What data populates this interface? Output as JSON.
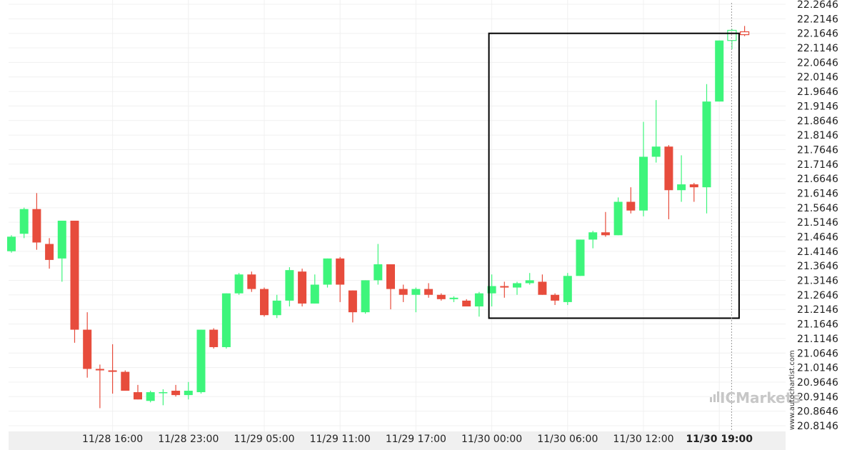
{
  "chart_data": {
    "type": "candlestick",
    "y_ticks": [
      "22.2646",
      "22.2146",
      "22.1646",
      "22.1146",
      "22.0646",
      "22.0146",
      "21.9646",
      "21.9146",
      "21.8646",
      "21.8146",
      "21.7646",
      "21.7146",
      "21.6646",
      "21.6146",
      "21.5646",
      "21.5146",
      "21.4646",
      "21.4146",
      "21.3646",
      "21.3146",
      "21.2646",
      "21.2146",
      "21.1646",
      "21.1146",
      "21.0646",
      "21.0146",
      "20.9646",
      "20.9146",
      "20.8646",
      "20.8146"
    ],
    "ylim": [
      20.8146,
      22.2646
    ],
    "x_ticks": [
      {
        "label": "11/28 16:00",
        "index": 8,
        "bold": false
      },
      {
        "label": "11/28 23:00",
        "index": 14,
        "bold": false
      },
      {
        "label": "11/29 05:00",
        "index": 20,
        "bold": false
      },
      {
        "label": "11/29 11:00",
        "index": 26,
        "bold": false
      },
      {
        "label": "11/29 17:00",
        "index": 32,
        "bold": false
      },
      {
        "label": "11/30 00:00",
        "index": 38,
        "bold": false
      },
      {
        "label": "11/30 06:00",
        "index": 44,
        "bold": false
      },
      {
        "label": "11/30 12:00",
        "index": 50,
        "bold": false
      },
      {
        "label": "11/30 19:00",
        "index": 56,
        "bold": true
      }
    ],
    "up_color": "#3df57b",
    "down_color": "#e74c3c",
    "candles": [
      {
        "o": 21.415,
        "h": 21.47,
        "l": 21.41,
        "c": 21.465
      },
      {
        "o": 21.475,
        "h": 21.565,
        "l": 21.46,
        "c": 21.56
      },
      {
        "o": 21.56,
        "h": 21.615,
        "l": 21.42,
        "c": 21.445
      },
      {
        "o": 21.44,
        "h": 21.46,
        "l": 21.355,
        "c": 21.385
      },
      {
        "o": 21.39,
        "h": 21.52,
        "l": 21.31,
        "c": 21.52
      },
      {
        "o": 21.52,
        "h": 21.52,
        "l": 21.1,
        "c": 21.145
      },
      {
        "o": 21.145,
        "h": 21.205,
        "l": 20.98,
        "c": 21.01
      },
      {
        "o": 21.01,
        "h": 21.025,
        "l": 20.875,
        "c": 21.005
      },
      {
        "o": 21.005,
        "h": 21.095,
        "l": 20.925,
        "c": 21.0
      },
      {
        "o": 21.0,
        "h": 21.005,
        "l": 20.94,
        "c": 20.935
      },
      {
        "o": 20.93,
        "h": 20.955,
        "l": 20.905,
        "c": 20.905
      },
      {
        "o": 20.9,
        "h": 20.935,
        "l": 20.895,
        "c": 20.93
      },
      {
        "o": 20.93,
        "h": 20.94,
        "l": 20.885,
        "c": 20.93
      },
      {
        "o": 20.935,
        "h": 20.955,
        "l": 20.915,
        "c": 20.92
      },
      {
        "o": 20.92,
        "h": 20.965,
        "l": 20.905,
        "c": 20.935
      },
      {
        "o": 20.93,
        "h": 21.145,
        "l": 20.925,
        "c": 21.145
      },
      {
        "o": 21.145,
        "h": 21.15,
        "l": 21.08,
        "c": 21.085
      },
      {
        "o": 21.085,
        "h": 21.27,
        "l": 21.08,
        "c": 21.27
      },
      {
        "o": 21.27,
        "h": 21.34,
        "l": 21.265,
        "c": 21.335
      },
      {
        "o": 21.335,
        "h": 21.345,
        "l": 21.275,
        "c": 21.285
      },
      {
        "o": 21.285,
        "h": 21.29,
        "l": 21.19,
        "c": 21.195
      },
      {
        "o": 21.195,
        "h": 21.265,
        "l": 21.185,
        "c": 21.245
      },
      {
        "o": 21.245,
        "h": 21.36,
        "l": 21.225,
        "c": 21.35
      },
      {
        "o": 21.345,
        "h": 21.355,
        "l": 21.225,
        "c": 21.235
      },
      {
        "o": 21.235,
        "h": 21.335,
        "l": 21.235,
        "c": 21.3
      },
      {
        "o": 21.3,
        "h": 21.39,
        "l": 21.29,
        "c": 21.39
      },
      {
        "o": 21.39,
        "h": 21.395,
        "l": 21.24,
        "c": 21.3
      },
      {
        "o": 21.28,
        "h": 21.28,
        "l": 21.17,
        "c": 21.205
      },
      {
        "o": 21.205,
        "h": 21.315,
        "l": 21.2,
        "c": 21.315
      },
      {
        "o": 21.315,
        "h": 21.44,
        "l": 21.3,
        "c": 21.37
      },
      {
        "o": 21.37,
        "h": 21.37,
        "l": 21.215,
        "c": 21.285
      },
      {
        "o": 21.285,
        "h": 21.3,
        "l": 21.24,
        "c": 21.265
      },
      {
        "o": 21.265,
        "h": 21.29,
        "l": 21.205,
        "c": 21.285
      },
      {
        "o": 21.285,
        "h": 21.305,
        "l": 21.255,
        "c": 21.265
      },
      {
        "o": 21.265,
        "h": 21.27,
        "l": 21.245,
        "c": 21.25
      },
      {
        "o": 21.25,
        "h": 21.26,
        "l": 21.24,
        "c": 21.255
      },
      {
        "o": 21.245,
        "h": 21.25,
        "l": 21.225,
        "c": 21.225
      },
      {
        "o": 21.225,
        "h": 21.275,
        "l": 21.19,
        "c": 21.27
      },
      {
        "o": 21.27,
        "h": 21.335,
        "l": 21.225,
        "c": 21.295
      },
      {
        "o": 21.295,
        "h": 21.31,
        "l": 21.255,
        "c": 21.29
      },
      {
        "o": 21.29,
        "h": 21.31,
        "l": 21.265,
        "c": 21.305
      },
      {
        "o": 21.305,
        "h": 21.34,
        "l": 21.3,
        "c": 21.315
      },
      {
        "o": 21.31,
        "h": 21.335,
        "l": 21.265,
        "c": 21.265
      },
      {
        "o": 21.265,
        "h": 21.27,
        "l": 21.23,
        "c": 21.245
      },
      {
        "o": 21.24,
        "h": 21.34,
        "l": 21.23,
        "c": 21.33
      },
      {
        "o": 21.33,
        "h": 21.455,
        "l": 21.33,
        "c": 21.455
      },
      {
        "o": 21.455,
        "h": 21.485,
        "l": 21.425,
        "c": 21.48
      },
      {
        "o": 21.48,
        "h": 21.55,
        "l": 21.465,
        "c": 21.47
      },
      {
        "o": 21.47,
        "h": 21.6,
        "l": 21.47,
        "c": 21.585
      },
      {
        "o": 21.585,
        "h": 21.635,
        "l": 21.545,
        "c": 21.555
      },
      {
        "o": 21.555,
        "h": 21.86,
        "l": 21.535,
        "c": 21.74
      },
      {
        "o": 21.74,
        "h": 21.935,
        "l": 21.72,
        "c": 21.775
      },
      {
        "o": 21.775,
        "h": 21.78,
        "l": 21.525,
        "c": 21.625
      },
      {
        "o": 21.625,
        "h": 21.745,
        "l": 21.585,
        "c": 21.645
      },
      {
        "o": 21.645,
        "h": 21.65,
        "l": 21.585,
        "c": 21.635
      },
      {
        "o": 21.635,
        "h": 21.99,
        "l": 21.545,
        "c": 21.93
      },
      {
        "o": 21.93,
        "h": 22.14,
        "l": 21.93,
        "c": 22.14
      },
      {
        "o": 22.14,
        "h": 22.18,
        "l": 22.11,
        "c": 22.175
      },
      {
        "o": 22.17,
        "h": 22.19,
        "l": 22.155,
        "c": 22.16
      }
    ],
    "hollow_last": 2,
    "highlight_box": {
      "from_index": 38,
      "to_index": 57,
      "y_top": 22.1646,
      "y_bottom": 21.1846
    },
    "current_marker_index": 57,
    "watermark": "ICMarkets",
    "vertical_watermark": "www.autochartist.com"
  }
}
